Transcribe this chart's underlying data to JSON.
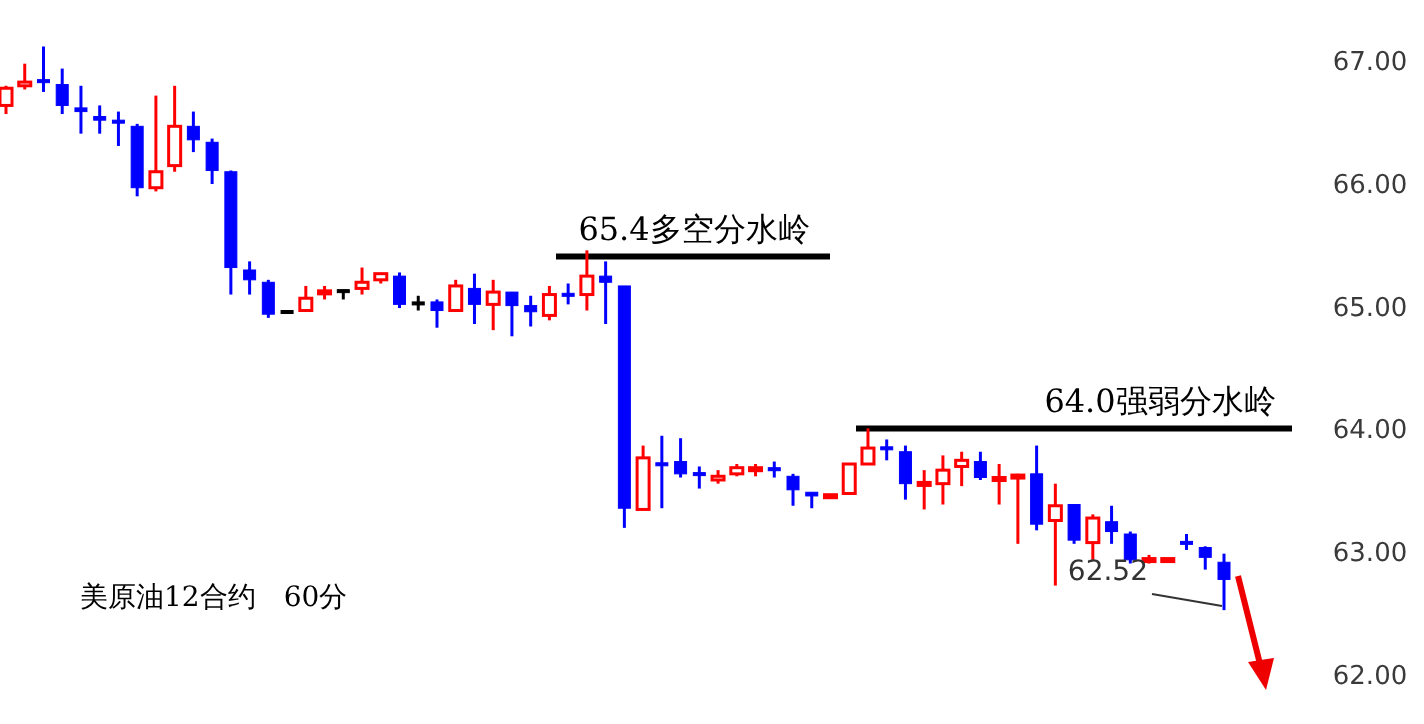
{
  "chart_data": {
    "type": "candlestick",
    "categories": [
      null,
      null,
      null,
      null,
      null,
      null,
      null,
      null,
      null,
      null,
      null,
      null,
      null,
      null,
      null,
      null,
      null,
      null,
      null,
      null,
      null,
      null,
      null,
      null,
      null,
      null,
      null,
      null,
      null,
      null,
      null,
      null,
      null,
      null,
      null,
      null,
      null,
      null,
      null,
      null,
      null,
      null,
      null,
      null,
      null,
      null,
      null,
      null,
      null,
      null,
      null,
      null,
      null,
      null,
      null,
      null,
      null,
      null,
      null,
      null,
      null,
      null,
      null,
      null,
      null,
      null
    ],
    "ohlc": [
      [
        66.63,
        66.79,
        66.56,
        66.77
      ],
      [
        66.79,
        66.97,
        66.76,
        66.82
      ],
      [
        66.84,
        67.11,
        66.74,
        66.82
      ],
      [
        66.8,
        66.93,
        66.56,
        66.63
      ],
      [
        66.61,
        66.79,
        66.4,
        66.58
      ],
      [
        66.54,
        66.63,
        66.4,
        66.51
      ],
      [
        66.51,
        66.58,
        66.3,
        66.5
      ],
      [
        66.46,
        66.48,
        65.89,
        65.96
      ],
      [
        65.96,
        66.71,
        65.93,
        66.09
      ],
      [
        66.14,
        66.79,
        66.09,
        66.46
      ],
      [
        66.46,
        66.58,
        66.25,
        66.35
      ],
      [
        66.33,
        66.36,
        65.99,
        66.1
      ],
      [
        66.09,
        66.1,
        65.09,
        65.31
      ],
      [
        65.29,
        65.36,
        65.09,
        65.21
      ],
      [
        65.19,
        65.21,
        64.9,
        64.93
      ],
      [
        64.96,
        64.96,
        64.96,
        64.96
      ],
      [
        64.96,
        65.16,
        64.96,
        65.06
      ],
      [
        65.1,
        65.16,
        65.05,
        65.12
      ],
      [
        65.13,
        65.13,
        65.05,
        65.13
      ],
      [
        65.14,
        65.31,
        65.09,
        65.19
      ],
      [
        65.21,
        65.26,
        65.18,
        65.26
      ],
      [
        65.24,
        65.27,
        64.98,
        65.01
      ],
      [
        65.03,
        65.08,
        64.96,
        65.03
      ],
      [
        65.03,
        65.05,
        64.82,
        64.96
      ],
      [
        64.96,
        65.21,
        64.96,
        65.16
      ],
      [
        65.14,
        65.26,
        64.85,
        65.01
      ],
      [
        65.01,
        65.21,
        64.8,
        65.11
      ],
      [
        65.11,
        65.11,
        64.75,
        65.0
      ],
      [
        65.0,
        65.08,
        64.83,
        64.95
      ],
      [
        64.92,
        65.16,
        64.88,
        65.09
      ],
      [
        65.1,
        65.18,
        65.01,
        65.08
      ],
      [
        65.09,
        65.45,
        64.96,
        65.24
      ],
      [
        65.24,
        65.36,
        64.85,
        65.19
      ],
      [
        65.16,
        65.16,
        63.19,
        63.35
      ],
      [
        63.34,
        63.86,
        63.34,
        63.76
      ],
      [
        63.72,
        63.94,
        63.35,
        63.7
      ],
      [
        63.73,
        63.92,
        63.6,
        63.63
      ],
      [
        63.64,
        63.69,
        63.51,
        63.62
      ],
      [
        63.58,
        63.66,
        63.55,
        63.61
      ],
      [
        63.63,
        63.71,
        63.61,
        63.68
      ],
      [
        63.66,
        63.71,
        63.61,
        63.68
      ],
      [
        63.68,
        63.73,
        63.6,
        63.66
      ],
      [
        63.61,
        63.63,
        63.37,
        63.5
      ],
      [
        63.48,
        63.48,
        63.35,
        63.45
      ],
      [
        63.44,
        63.46,
        63.43,
        63.46
      ],
      [
        63.47,
        63.71,
        63.47,
        63.71
      ],
      [
        63.71,
        64.0,
        63.71,
        63.84
      ],
      [
        63.85,
        63.91,
        63.74,
        63.83
      ],
      [
        63.81,
        63.86,
        63.42,
        63.55
      ],
      [
        63.54,
        63.66,
        63.34,
        63.56
      ],
      [
        63.55,
        63.78,
        63.38,
        63.66
      ],
      [
        63.69,
        63.81,
        63.53,
        63.74
      ],
      [
        63.73,
        63.81,
        63.58,
        63.6
      ],
      [
        63.58,
        63.71,
        63.38,
        63.6
      ],
      [
        63.6,
        63.63,
        63.06,
        63.62
      ],
      [
        63.63,
        63.86,
        63.17,
        63.22
      ],
      [
        63.25,
        63.55,
        62.72,
        63.37
      ],
      [
        63.38,
        63.38,
        63.06,
        63.09
      ],
      [
        63.07,
        63.3,
        62.93,
        63.27
      ],
      [
        63.24,
        63.37,
        63.06,
        63.16
      ],
      [
        63.14,
        63.16,
        62.9,
        62.93
      ],
      [
        62.92,
        62.97,
        62.9,
        62.94
      ],
      [
        62.93,
        62.94,
        62.93,
        62.94
      ],
      [
        63.08,
        63.14,
        63.01,
        63.06
      ],
      [
        63.03,
        63.04,
        62.85,
        62.95
      ],
      [
        62.91,
        62.98,
        62.52,
        62.77
      ]
    ],
    "colors": [
      "#ff0000",
      "#ff0000",
      "#0000ff",
      "#0000ff",
      "#0000ff",
      "#0000ff",
      "#0000ff",
      "#0000ff",
      "#ff0000",
      "#ff0000",
      "#0000ff",
      "#0000ff",
      "#0000ff",
      "#0000ff",
      "#0000ff",
      "#000000",
      "#ff0000",
      "#ff0000",
      "#000000",
      "#ff0000",
      "#ff0000",
      "#0000ff",
      "#000000",
      "#0000ff",
      "#ff0000",
      "#0000ff",
      "#ff0000",
      "#0000ff",
      "#0000ff",
      "#ff0000",
      "#0000ff",
      "#ff0000",
      "#0000ff",
      "#0000ff",
      "#ff0000",
      "#0000ff",
      "#0000ff",
      "#0000ff",
      "#ff0000",
      "#ff0000",
      "#ff0000",
      "#0000ff",
      "#0000ff",
      "#0000ff",
      "#ff0000",
      "#ff0000",
      "#ff0000",
      "#0000ff",
      "#0000ff",
      "#ff0000",
      "#ff0000",
      "#ff0000",
      "#0000ff",
      "#ff0000",
      "#ff0000",
      "#0000ff",
      "#ff0000",
      "#0000ff",
      "#ff0000",
      "#0000ff",
      "#0000ff",
      "#ff0000",
      "#ff0000",
      "#0000ff",
      "#0000ff",
      "#0000ff"
    ],
    "ylim": [
      62,
      67
    ],
    "yticks": [
      {
        "value": 62,
        "label": "62.00"
      },
      {
        "value": 63,
        "label": "63.00"
      },
      {
        "value": 64,
        "label": "64.00"
      },
      {
        "value": 65,
        "label": "65.00"
      },
      {
        "value": 66,
        "label": "66.00"
      },
      {
        "value": 67,
        "label": "67.00"
      }
    ],
    "tick_labels": "y",
    "grid": false,
    "ref_lines": [
      {
        "axis": "y",
        "value": 65.4,
        "label": "65.4多空分水岭",
        "color": "#000000"
      },
      {
        "axis": "y",
        "value": 64.0,
        "label": "64.0强弱分水岭",
        "color": "#000000"
      }
    ],
    "annotations": [
      "62.52",
      "美原油12合约　60分"
    ]
  }
}
